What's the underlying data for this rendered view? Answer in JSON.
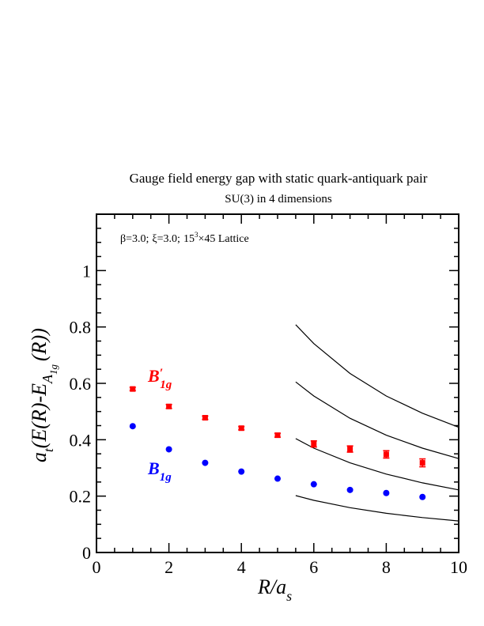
{
  "chart_data": {
    "type": "scatter",
    "title": "Gauge field energy gap with static quark-antiquark pair",
    "subtitle": "SU(3) in 4 dimensions",
    "annotation": {
      "beta": "β=3.0;",
      "xi": "ξ=3.0;",
      "lattice_base": "15",
      "lattice_exp": "3",
      "lattice_rest": "×45 Lattice"
    },
    "xlabel": {
      "main": "R/a",
      "sub": "s"
    },
    "ylabel": {
      "a": "a",
      "a_sub": "t",
      "body": "(E(R)-E",
      "sub": "A",
      "subsub": "1g",
      "tail": "(R))"
    },
    "xlim": [
      0,
      10
    ],
    "ylim": [
      0,
      1.2
    ],
    "x_ticks": [
      "0",
      "2",
      "4",
      "6",
      "8",
      "10"
    ],
    "y_ticks": [
      "0",
      "0.2",
      "0.4",
      "0.6",
      "0.8",
      "1"
    ],
    "grid": false,
    "series": [
      {
        "name": "B′1g",
        "label_main": "B",
        "label_prime": "′",
        "label_sub": "1g",
        "color": "#ff0000",
        "marker": "square",
        "x": [
          1,
          2,
          3,
          4,
          5,
          6,
          7,
          8,
          9
        ],
        "y": [
          0.58,
          0.518,
          0.478,
          0.441,
          0.416,
          0.385,
          0.367,
          0.348,
          0.318
        ],
        "err": [
          0.006,
          0.007,
          0.006,
          0.006,
          0.007,
          0.011,
          0.011,
          0.013,
          0.014
        ]
      },
      {
        "name": "B1g",
        "label_main": "B",
        "label_sub": "1g",
        "color": "#0000ff",
        "marker": "circle",
        "x": [
          1,
          2,
          3,
          4,
          5,
          6,
          7,
          8,
          9
        ],
        "y": [
          0.448,
          0.366,
          0.318,
          0.287,
          0.262,
          0.242,
          0.222,
          0.211,
          0.197
        ],
        "err": [
          0,
          0,
          0,
          0,
          0,
          0,
          0,
          0,
          0
        ]
      }
    ],
    "curves": [
      {
        "x": [
          5.5,
          6,
          7,
          8,
          9,
          10
        ],
        "y": [
          0.202,
          0.185,
          0.159,
          0.139,
          0.124,
          0.112
        ]
      },
      {
        "x": [
          5.5,
          6,
          7,
          8,
          9,
          10
        ],
        "y": [
          0.404,
          0.37,
          0.318,
          0.278,
          0.247,
          0.222
        ]
      },
      {
        "x": [
          5.5,
          6,
          7,
          8,
          9,
          10
        ],
        "y": [
          0.605,
          0.555,
          0.476,
          0.416,
          0.37,
          0.333
        ]
      },
      {
        "x": [
          5.5,
          6,
          7,
          8,
          9,
          10
        ],
        "y": [
          0.808,
          0.741,
          0.635,
          0.555,
          0.494,
          0.444
        ]
      }
    ]
  }
}
